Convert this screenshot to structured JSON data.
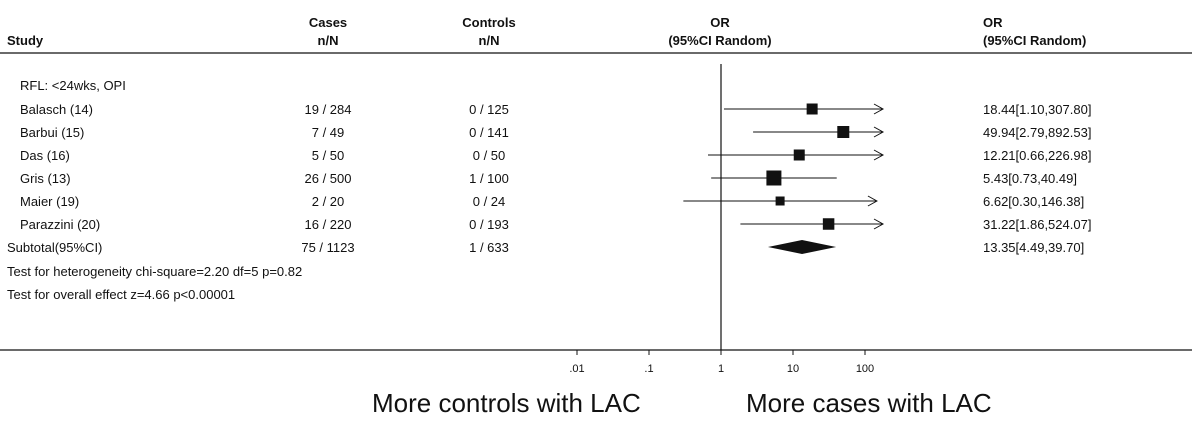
{
  "header": {
    "study": "Study",
    "cases_top": "Cases",
    "cases_bottom": "n/N",
    "controls_top": "Controls",
    "controls_bottom": "n/N",
    "or_plot_top": "OR",
    "or_plot_bottom": "(95%CI Random)",
    "or_text_top": "OR",
    "or_text_bottom": "(95%CI Random)"
  },
  "colors": {
    "ink": "#111111"
  },
  "chart_data": {
    "type": "forest",
    "x_scale": "log",
    "xlim": [
      0.01,
      100
    ],
    "ticks": [
      {
        "value": 0.01,
        "label": ".01"
      },
      {
        "value": 0.1,
        "label": ".1"
      },
      {
        "value": 1,
        "label": "1"
      },
      {
        "value": 10,
        "label": "10"
      },
      {
        "value": 100,
        "label": "100"
      }
    ],
    "reference_line": 1,
    "group_label": "RFL: <24wks, OPI",
    "studies": [
      {
        "name": "Balasch (14)",
        "cases": "19 / 284",
        "controls": "0 / 125",
        "or": 18.44,
        "lo": 1.1,
        "hi": 307.8,
        "ci_text": "18.44[1.10,307.80]",
        "weight": 1.0,
        "arrow_right": true
      },
      {
        "name": "Barbui (15)",
        "cases": "7 / 49",
        "controls": "0 / 141",
        "or": 49.94,
        "lo": 2.79,
        "hi": 892.53,
        "ci_text": "49.94[2.79,892.53]",
        "weight": 1.2,
        "arrow_right": true
      },
      {
        "name": "Das (16)",
        "cases": "5 / 50",
        "controls": "0 / 50",
        "or": 12.21,
        "lo": 0.66,
        "hi": 226.98,
        "ci_text": "12.21[0.66,226.98]",
        "weight": 1.0,
        "arrow_right": true
      },
      {
        "name": "Gris (13)",
        "cases": "26 / 500",
        "controls": "1 / 100",
        "or": 5.43,
        "lo": 0.73,
        "hi": 40.49,
        "ci_text": "5.43[0.73,40.49]",
        "weight": 1.8,
        "arrow_right": false
      },
      {
        "name": "Maier (19)",
        "cases": "2 / 20",
        "controls": "0 / 24",
        "or": 6.62,
        "lo": 0.3,
        "hi": 146.38,
        "ci_text": "6.62[0.30,146.38]",
        "weight": 0.6,
        "arrow_right": true
      },
      {
        "name": "Parazzini (20)",
        "cases": "16 / 220",
        "controls": "0 / 193",
        "or": 31.22,
        "lo": 1.86,
        "hi": 524.07,
        "ci_text": "31.22[1.86,524.07]",
        "weight": 1.1,
        "arrow_right": true
      }
    ],
    "subtotal": {
      "name": "Subtotal(95%CI)",
      "cases": "75 / 1123",
      "controls": "1 / 633",
      "or": 13.35,
      "lo": 4.49,
      "hi": 39.7,
      "ci_text": "13.35[4.49,39.70]"
    },
    "heterogeneity": "Test for heterogeneity chi-square=2.20  df=5  p=0.82",
    "overall_effect": "Test for overall effect  z=4.66  p<0.00001",
    "favours_left": "More controls with LAC",
    "favours_right": "More cases with LAC"
  }
}
